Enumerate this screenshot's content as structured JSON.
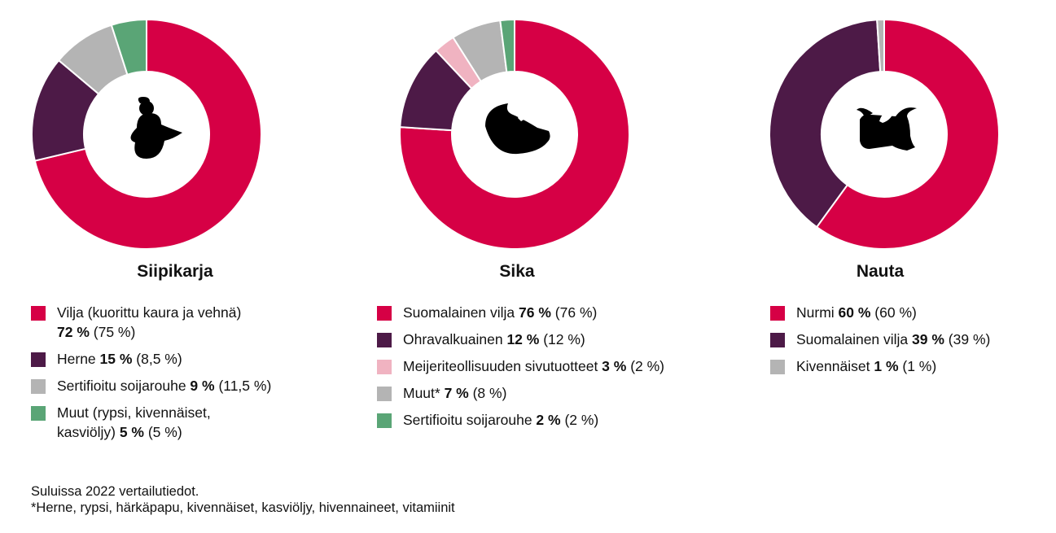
{
  "chart_data": [
    {
      "type": "pie",
      "title": "Siipikarja",
      "icon": "chicken-icon",
      "values": [
        72,
        15,
        9,
        5
      ],
      "colors": [
        "#d60045",
        "#4d1a47",
        "#b4b4b4",
        "#5aa576"
      ],
      "legend": [
        {
          "lines": [
            {
              "text": "Vilja (kuorittu kaura ja vehnä)",
              "value": "",
              "prev": ""
            },
            {
              "text": "",
              "value": "72 %",
              "prev": " (75 %)"
            }
          ]
        },
        {
          "lines": [
            {
              "text": "Herne ",
              "value": "15 %",
              "prev": " (8,5 %)"
            }
          ]
        },
        {
          "lines": [
            {
              "text": "Sertifioitu soijarouhe ",
              "value": "9 %",
              "prev": " (11,5 %)"
            }
          ]
        },
        {
          "lines": [
            {
              "text": "Muut (rypsi, kivennäiset,",
              "value": "",
              "prev": ""
            },
            {
              "text": "kasviöljy) ",
              "value": "5 %",
              "prev": " (5 %)"
            }
          ]
        }
      ]
    },
    {
      "type": "pie",
      "title": "Sika",
      "icon": "pig-icon",
      "values": [
        76,
        12,
        3,
        7,
        2
      ],
      "colors": [
        "#d60045",
        "#4d1a47",
        "#f0b3c1",
        "#b4b4b4",
        "#5aa576"
      ],
      "legend": [
        {
          "lines": [
            {
              "text": "Suomalainen vilja ",
              "value": "76 %",
              "prev": " (76 %)"
            }
          ]
        },
        {
          "lines": [
            {
              "text": "Ohravalkuainen ",
              "value": "12 %",
              "prev": " (12 %)"
            }
          ]
        },
        {
          "lines": [
            {
              "text": "Meijeriteollisuuden sivutuotteet ",
              "value": "3 %",
              "prev": " (2 %)"
            }
          ]
        },
        {
          "lines": [
            {
              "text": "Muut* ",
              "value": "7 %",
              "prev": " (8 %)"
            }
          ]
        },
        {
          "lines": [
            {
              "text": "Sertifioitu soijarouhe ",
              "value": "2 %",
              "prev": " (2 %)"
            }
          ]
        }
      ]
    },
    {
      "type": "pie",
      "title": "Nauta",
      "icon": "cow-icon",
      "values": [
        60,
        39,
        1
      ],
      "colors": [
        "#d60045",
        "#4d1a47",
        "#b4b4b4"
      ],
      "legend": [
        {
          "lines": [
            {
              "text": "Nurmi ",
              "value": "60 %",
              "prev": " (60 %)"
            }
          ]
        },
        {
          "lines": [
            {
              "text": "Suomalainen vilja ",
              "value": "39 %",
              "prev": " (39 %)"
            }
          ]
        },
        {
          "lines": [
            {
              "text": "Kivennäiset ",
              "value": "1 %",
              "prev": " (1 %)"
            }
          ]
        }
      ]
    }
  ],
  "footnotes": {
    "line1": "Suluissa 2022 vertailutiedot.",
    "line2": "*Herne, rypsi, härkäpapu, kivennäiset, kasviöljy, hivennaineet, vitamiinit"
  }
}
